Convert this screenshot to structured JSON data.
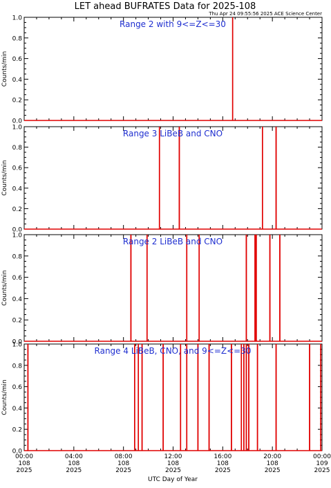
{
  "header": {
    "title": "LET ahead BUFRATES Data for 2025-108",
    "timestamp": "Thu Apr 24 09:55:56 2025 ACE Science Center"
  },
  "colors": {
    "data": "#e00000",
    "panel_label": "#1f2fd0",
    "axis": "#000000",
    "background": "#ffffff"
  },
  "chart_data": [
    {
      "type": "line",
      "title": "Range 2 with 9<=Z<=30",
      "ylabel": "Counts/min",
      "ylim": [
        0,
        1
      ],
      "yticks": [
        "0.0",
        "0.2",
        "0.4",
        "0.6",
        "0.8",
        "1.0"
      ],
      "xlim_hours": [
        0,
        24
      ],
      "spikes_hours": [
        16.8
      ],
      "spike_value": 1.0
    },
    {
      "type": "line",
      "title": "Range 3 LiBeB and CNO",
      "ylabel": "Counts/min",
      "ylim": [
        0,
        1
      ],
      "yticks": [
        "0.0",
        "0.2",
        "0.4",
        "0.6",
        "0.8",
        "1.0"
      ],
      "xlim_hours": [
        0,
        24
      ],
      "spikes_hours": [
        10.9,
        12.5,
        19.2,
        20.3
      ],
      "spike_value": 1.0
    },
    {
      "type": "line",
      "title": "Range 2 LiBeB and CNO",
      "ylabel": "Counts/min",
      "ylim": [
        0,
        1
      ],
      "yticks": [
        "0.0",
        "0.2",
        "0.4",
        "0.6",
        "0.8",
        "1.0"
      ],
      "xlim_hours": [
        0,
        24
      ],
      "spikes_hours": [
        8.6,
        9.9,
        13.1,
        14.1,
        17.9,
        18.6,
        18.7,
        19.8,
        20.6
      ],
      "spike_value": 1.0
    },
    {
      "type": "line",
      "title": "Range 4 LiBeB, CNO, and 9<=Z<=30",
      "ylabel": "Counts/min",
      "ylim": [
        0,
        1
      ],
      "yticks": [
        "0.0",
        "0.2",
        "0.4",
        "0.6",
        "0.8",
        "1.0"
      ],
      "xlim_hours": [
        0,
        24
      ],
      "spikes_hours": [
        0.3,
        8.9,
        9.2,
        9.5,
        11.2,
        12.6,
        13.1,
        14.0,
        14.9,
        16.7,
        17.5,
        17.7,
        17.9,
        18.1,
        18.8,
        20.3,
        23.0,
        23.9
      ],
      "spike_value": 1.0
    }
  ],
  "xaxis": {
    "label": "UTC Day of Year",
    "ticks": [
      {
        "time": "00:00",
        "day": "108",
        "year": "2025",
        "hour": 0
      },
      {
        "time": "04:00",
        "day": "108",
        "year": "2025",
        "hour": 4
      },
      {
        "time": "08:00",
        "day": "108",
        "year": "2025",
        "hour": 8
      },
      {
        "time": "12:00",
        "day": "108",
        "year": "2025",
        "hour": 12
      },
      {
        "time": "16:00",
        "day": "108",
        "year": "2025",
        "hour": 16
      },
      {
        "time": "20:00",
        "day": "108",
        "year": "2025",
        "hour": 20
      },
      {
        "time": "00:00",
        "day": "109",
        "year": "2025",
        "hour": 24
      }
    ]
  }
}
